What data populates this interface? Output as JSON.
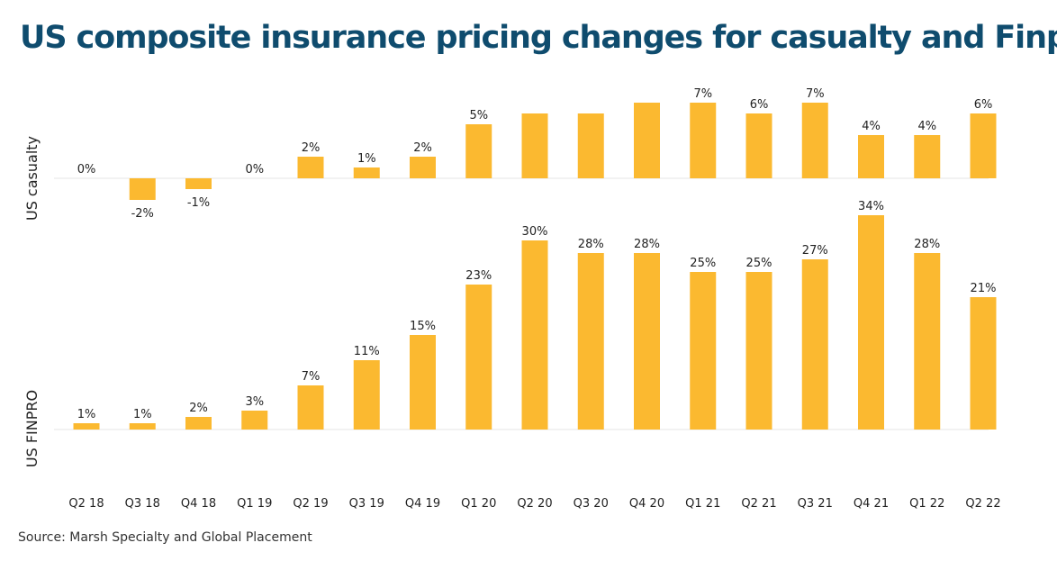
{
  "title": "US composite insurance pricing changes for casualty and Finpro",
  "source": "Source: Marsh Specialty and Global Placement",
  "colors": {
    "bar": "#fbb930",
    "title": "#0f4c6e",
    "baseline": "#e6e6e6",
    "text": "#222222"
  },
  "chart_data": {
    "type": "bar",
    "categories": [
      "Q2 18",
      "Q3 18",
      "Q4 18",
      "Q1 19",
      "Q2 19",
      "Q3 19",
      "Q4 19",
      "Q1 20",
      "Q2 20",
      "Q3 20",
      "Q4 20",
      "Q1 21",
      "Q2 21",
      "Q3 21",
      "Q4 21",
      "Q1 22",
      "Q2 22"
    ],
    "series": [
      {
        "name": "US casualty",
        "values": [
          0,
          -2,
          -1,
          0,
          2,
          1,
          2,
          5,
          6,
          6,
          7,
          7,
          6,
          7,
          4,
          4,
          6
        ],
        "labels": [
          "0%",
          "-2%",
          "-1%",
          "0%",
          "2%",
          "1%",
          "2%",
          "5%",
          "",
          "",
          "",
          "7%",
          "6%",
          "7%",
          "4%",
          "4%",
          "6%"
        ]
      },
      {
        "name": "US FINPRO",
        "values": [
          1,
          1,
          2,
          3,
          7,
          11,
          15,
          23,
          30,
          28,
          28,
          25,
          25,
          27,
          34,
          28,
          21
        ],
        "labels": [
          "1%",
          "1%",
          "2%",
          "3%",
          "7%",
          "11%",
          "15%",
          "23%",
          "30%",
          "28%",
          "28%",
          "25%",
          "25%",
          "27%",
          "34%",
          "28%",
          "21%"
        ]
      }
    ]
  }
}
